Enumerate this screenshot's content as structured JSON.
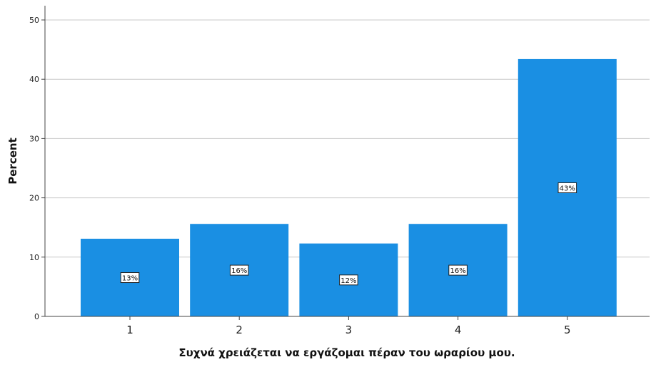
{
  "chart_data": {
    "type": "bar",
    "categories": [
      "1",
      "2",
      "3",
      "4",
      "5"
    ],
    "values": [
      13.1,
      15.6,
      12.3,
      15.6,
      43.4
    ],
    "data_labels": [
      "13%",
      "16%",
      "12%",
      "16%",
      "43%"
    ],
    "xlabel": "Συχνά χρειάζεται να εργάζομαι πέραν του ωραρίου μου.",
    "ylabel": "Percent",
    "ylim": [
      0,
      50
    ],
    "yticks": [
      "0",
      "10",
      "20",
      "30",
      "40",
      "50"
    ],
    "grid": true,
    "bar_color": "#1a8fe3"
  }
}
